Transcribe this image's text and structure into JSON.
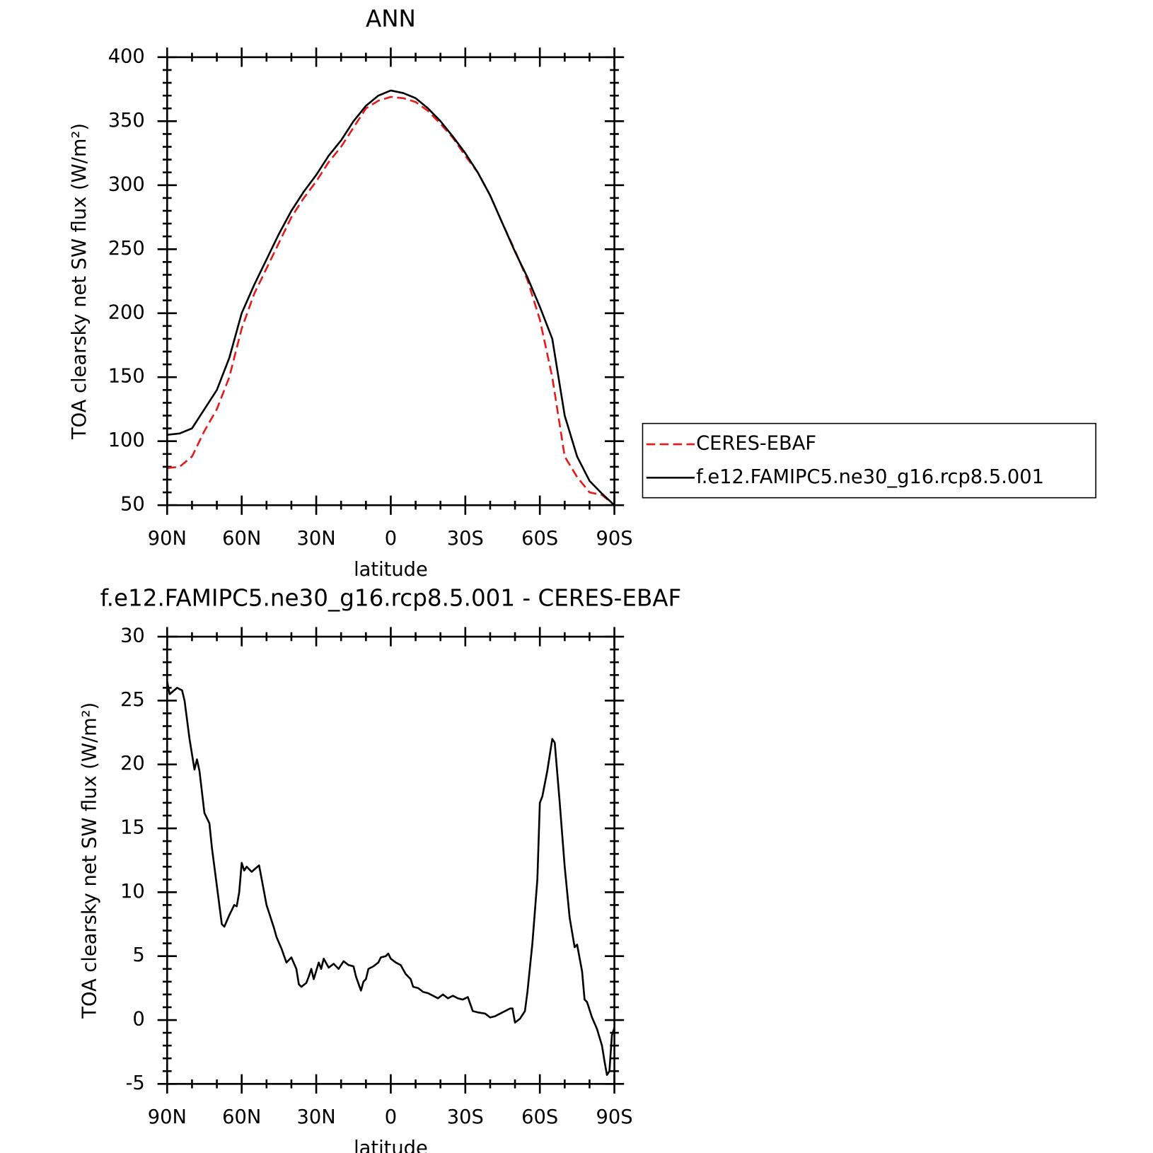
{
  "chart_data": [
    {
      "type": "line",
      "title": "ANN",
      "xlabel": "latitude",
      "ylabel": "TOA clearsky net SW flux (W/m²)",
      "xlim": [
        90,
        -90
      ],
      "ylim": [
        50,
        400
      ],
      "xticks": [
        {
          "value": 90,
          "label": "90N"
        },
        {
          "value": 60,
          "label": "60N"
        },
        {
          "value": 30,
          "label": "30N"
        },
        0,
        {
          "value": -30,
          "label": "30S"
        },
        {
          "value": -60,
          "label": "60S"
        },
        {
          "value": -90,
          "label": "90S"
        }
      ],
      "yticks": [
        50,
        100,
        150,
        200,
        250,
        300,
        350,
        400
      ],
      "legend": "right",
      "x": [
        90,
        85,
        80,
        75,
        70,
        65,
        60,
        55,
        50,
        45,
        40,
        35,
        30,
        25,
        20,
        15,
        10,
        5,
        0,
        -5,
        -10,
        -15,
        -20,
        -25,
        -30,
        -35,
        -40,
        -45,
        -50,
        -55,
        -60,
        -65,
        -70,
        -75,
        -80,
        -85,
        -90
      ],
      "series": [
        {
          "name": "CERES-EBAF",
          "color": "#e41a1c",
          "dashed": true,
          "values": [
            79,
            80,
            88,
            108,
            125,
            150,
            188,
            215,
            235,
            255,
            275,
            290,
            303,
            318,
            330,
            345,
            360,
            366,
            369,
            368,
            365,
            358,
            348,
            337,
            323,
            310,
            292,
            270,
            249,
            226,
            195,
            150,
            88,
            72,
            60,
            58,
            50
          ]
        },
        {
          "name": "f.e12.FAMIPC5.ne30_g16.rcp8.5.001",
          "color": "#000000",
          "dashed": false,
          "values": [
            105,
            106,
            110,
            125,
            140,
            165,
            200,
            222,
            242,
            262,
            280,
            295,
            308,
            323,
            335,
            350,
            362,
            370,
            374,
            372,
            368,
            360,
            350,
            338,
            325,
            310,
            292,
            270,
            248,
            228,
            205,
            180,
            120,
            88,
            69,
            59,
            50
          ]
        }
      ]
    },
    {
      "type": "line",
      "title": "f.e12.FAMIPC5.ne30_g16.rcp8.5.001 - CERES-EBAF",
      "xlabel": "latitude",
      "ylabel": "TOA clearsky net SW flux (W/m²)",
      "xlim": [
        90,
        -90
      ],
      "ylim": [
        -5,
        30
      ],
      "xticks": [
        {
          "value": 90,
          "label": "90N"
        },
        {
          "value": 60,
          "label": "60N"
        },
        {
          "value": 30,
          "label": "30N"
        },
        0,
        {
          "value": -30,
          "label": "30S"
        },
        {
          "value": -60,
          "label": "60S"
        },
        {
          "value": -90,
          "label": "90S"
        }
      ],
      "yticks": [
        -5,
        0,
        5,
        10,
        15,
        20,
        25,
        30
      ],
      "color": "#000000",
      "x": [
        90,
        89,
        86,
        84,
        83,
        81,
        79,
        78,
        77,
        75,
        73,
        72,
        70,
        68,
        67,
        65,
        63,
        62,
        61,
        60,
        59,
        58,
        56,
        53,
        50,
        49,
        47,
        46,
        44,
        42,
        40,
        38,
        37,
        36,
        34,
        33,
        32,
        31,
        29,
        28,
        27,
        25,
        23,
        21,
        19,
        17,
        15,
        14,
        12,
        11,
        10,
        9,
        7,
        5,
        4,
        2,
        1,
        0,
        -2,
        -4,
        -6,
        -8,
        -9,
        -11,
        -13,
        -15,
        -17,
        -19,
        -21,
        -23,
        -25,
        -27,
        -29,
        -31,
        -33,
        -35,
        -38,
        -40,
        -42,
        -44,
        -46,
        -48,
        -49,
        -50,
        -52,
        -54,
        -55,
        -57,
        -59,
        -60,
        -61,
        -63,
        -65,
        -66,
        -68,
        -70,
        -72,
        -74,
        -75,
        -77,
        -78,
        -79,
        -81,
        -83,
        -85,
        -86,
        -87,
        -88,
        -89,
        -90
      ],
      "values": [
        26.5,
        25.5,
        26,
        25.8,
        25,
        22,
        19.6,
        20.4,
        19.5,
        16.2,
        15.4,
        13.5,
        10.5,
        7.5,
        7.3,
        8.2,
        9,
        8.9,
        10,
        12.3,
        11.7,
        12,
        11.6,
        12.1,
        9,
        8.4,
        7.2,
        6.5,
        5.6,
        4.5,
        4.9,
        4,
        2.8,
        2.6,
        2.9,
        3.4,
        4,
        3.2,
        4.5,
        4,
        4.8,
        4.1,
        4.4,
        4,
        4.6,
        4.3,
        4.2,
        3.4,
        2.3,
        3,
        3.2,
        4,
        4.2,
        4.5,
        4.9,
        5,
        5.2,
        4.8,
        4.5,
        4.3,
        3.6,
        3.2,
        2.6,
        2.5,
        2.2,
        2.1,
        1.9,
        1.7,
        2,
        1.7,
        1.9,
        1.7,
        1.6,
        1.8,
        0.7,
        0.6,
        0.5,
        0.2,
        0.3,
        0.5,
        0.7,
        0.9,
        0.9,
        -0.2,
        0.1,
        0.7,
        2.2,
        6,
        11,
        17,
        17.5,
        19.5,
        22,
        21.7,
        17,
        12,
        8,
        5.7,
        5.9,
        3.8,
        1.6,
        1.4,
        0.2,
        -0.7,
        -2,
        -3.2,
        -4.3,
        -4,
        -1.2,
        -0.6
      ]
    }
  ]
}
